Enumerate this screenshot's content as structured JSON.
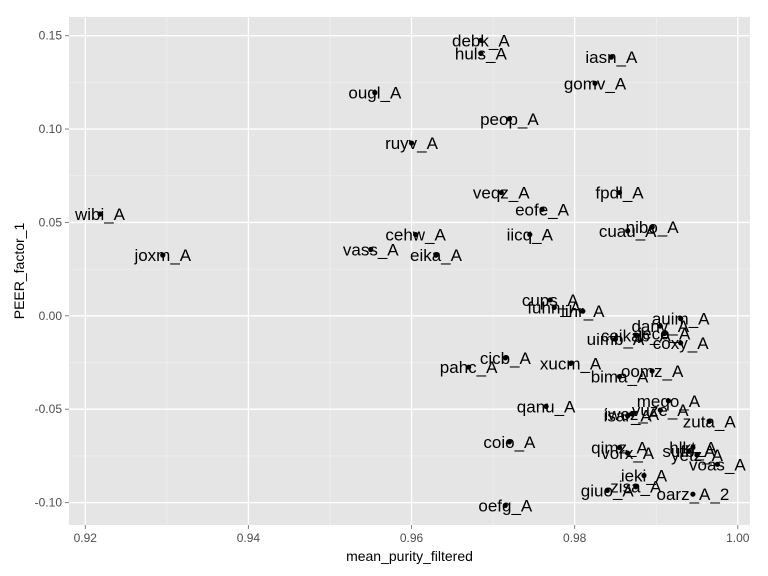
{
  "chart_data": {
    "type": "scatter",
    "title": "",
    "xlabel": "mean_purity_filtered",
    "ylabel": "PEER_factor_1",
    "xlim": [
      0.918,
      1.0015
    ],
    "ylim": [
      -0.112,
      0.16
    ],
    "xticks": [
      0.92,
      0.94,
      0.96,
      0.98,
      1.0
    ],
    "xtick_labels": [
      "0.92",
      "0.94",
      "0.96",
      "0.98",
      "1.00"
    ],
    "yticks": [
      -0.1,
      -0.05,
      0.0,
      0.05,
      0.1,
      0.15
    ],
    "ytick_labels": [
      "-0.10",
      "-0.05",
      "0.00",
      "0.05",
      "0.10",
      "0.15"
    ],
    "grid": true,
    "colors": {
      "panel": "#e5e5e5",
      "grid_major": "#ffffff",
      "grid_minor": "#f2f2f2",
      "point": "#000000",
      "text": "#000000"
    },
    "points": [
      {
        "label": "debk_A",
        "x": 0.9685,
        "y": 0.1475
      },
      {
        "label": "huls_A",
        "x": 0.9685,
        "y": 0.1405
      },
      {
        "label": "iasn_A",
        "x": 0.9845,
        "y": 0.1385
      },
      {
        "label": "gomv_A",
        "x": 0.9825,
        "y": 0.1245
      },
      {
        "label": "ougl_A",
        "x": 0.9555,
        "y": 0.1195
      },
      {
        "label": "peop_A",
        "x": 0.972,
        "y": 0.1055
      },
      {
        "label": "ruyv_A",
        "x": 0.96,
        "y": 0.0925
      },
      {
        "label": "veqz_A",
        "x": 0.971,
        "y": 0.066
      },
      {
        "label": "fpdl_A",
        "x": 0.9855,
        "y": 0.066
      },
      {
        "label": "eofe_A",
        "x": 0.976,
        "y": 0.057
      },
      {
        "label": "wibi_A",
        "x": 0.9218,
        "y": 0.0545
      },
      {
        "label": "nibo_A",
        "x": 0.9895,
        "y": 0.0475
      },
      {
        "label": "cuau_A",
        "x": 0.9865,
        "y": 0.0455
      },
      {
        "label": "cehw_A",
        "x": 0.9605,
        "y": 0.0435
      },
      {
        "label": "iicq_A",
        "x": 0.9745,
        "y": 0.0435
      },
      {
        "label": "vass_A",
        "x": 0.955,
        "y": 0.0355
      },
      {
        "label": "eika_A",
        "x": 0.963,
        "y": 0.0325
      },
      {
        "label": "joxm_A",
        "x": 0.9295,
        "y": 0.0325
      },
      {
        "label": "cups_A",
        "x": 0.977,
        "y": 0.0085
      },
      {
        "label": "fuhn_A",
        "x": 0.9775,
        "y": 0.0045
      },
      {
        "label": "lihr_A",
        "x": 0.981,
        "y": 0.0025
      },
      {
        "label": "auim_A",
        "x": 0.993,
        "y": -0.0015
      },
      {
        "label": "danv_A",
        "x": 0.9905,
        "y": -0.0055
      },
      {
        "label": "jeco_A",
        "x": 0.991,
        "y": -0.0095
      },
      {
        "label": "ceikab_A",
        "x": 0.9875,
        "y": -0.0105
      },
      {
        "label": "uimb_A",
        "x": 0.985,
        "y": -0.0125
      },
      {
        "label": "coxy_A",
        "x": 0.993,
        "y": -0.0145
      },
      {
        "label": "cicb_A",
        "x": 0.9715,
        "y": -0.0225
      },
      {
        "label": "xucm_A",
        "x": 0.9795,
        "y": -0.0255
      },
      {
        "label": "pahc_A",
        "x": 0.967,
        "y": -0.0275
      },
      {
        "label": "oomz_A",
        "x": 0.9895,
        "y": -0.0295
      },
      {
        "label": "bima_A",
        "x": 0.9855,
        "y": -0.0325
      },
      {
        "label": "meqo_A",
        "x": 0.9915,
        "y": -0.0455
      },
      {
        "label": "qanu_A",
        "x": 0.9765,
        "y": -0.0485
      },
      {
        "label": "vuze_A",
        "x": 0.9905,
        "y": -0.0505
      },
      {
        "label": "iwez_A",
        "x": 0.987,
        "y": -0.0525
      },
      {
        "label": "isar_A",
        "x": 0.9865,
        "y": -0.0535
      },
      {
        "label": "zuta_A",
        "x": 0.9965,
        "y": -0.0565
      },
      {
        "label": "coio_A",
        "x": 0.972,
        "y": -0.0675
      },
      {
        "label": "qimz_A",
        "x": 0.9855,
        "y": -0.0705
      },
      {
        "label": "hlkt_A",
        "x": 0.9945,
        "y": -0.0705
      },
      {
        "label": "sufb_A",
        "x": 0.994,
        "y": -0.0725
      },
      {
        "label": "vorx_A",
        "x": 0.9865,
        "y": -0.0735
      },
      {
        "label": "yetz_A",
        "x": 0.995,
        "y": -0.0745
      },
      {
        "label": "voas_A",
        "x": 0.9975,
        "y": -0.0795
      },
      {
        "label": "ieki_A",
        "x": 0.9885,
        "y": -0.0855
      },
      {
        "label": "zisa_A",
        "x": 0.9875,
        "y": -0.0915
      },
      {
        "label": "giuo_A",
        "x": 0.984,
        "y": -0.0935
      },
      {
        "label": "oarz_A_2",
        "x": 0.9945,
        "y": -0.0955
      },
      {
        "label": "oefg_A",
        "x": 0.9715,
        "y": -0.1015
      }
    ]
  }
}
